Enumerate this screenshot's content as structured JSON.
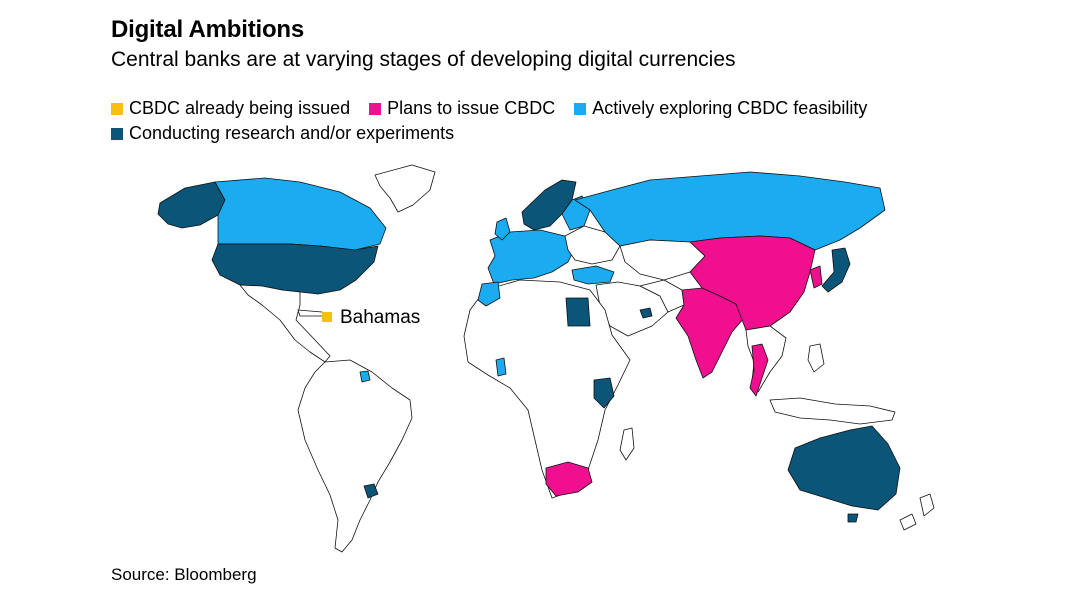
{
  "header": {
    "title": "Digital Ambitions",
    "subtitle": "Central banks are at varying stages of developing digital currencies"
  },
  "legend": {
    "items": [
      {
        "label": "CBDC already being issued",
        "color": "#f7bf0f"
      },
      {
        "label": "Plans to issue CBDC",
        "color": "#f00f8f"
      },
      {
        "label": "Actively exploring CBDC feasibility",
        "color": "#1aabf0"
      },
      {
        "label": "Conducting research and/or experiments",
        "color": "#0a5578"
      }
    ]
  },
  "map": {
    "callout_label": "Bahamas",
    "none_color": "#ffffff",
    "border_color": "#111111"
  },
  "footer": {
    "source": "Source: Bloomberg"
  }
}
